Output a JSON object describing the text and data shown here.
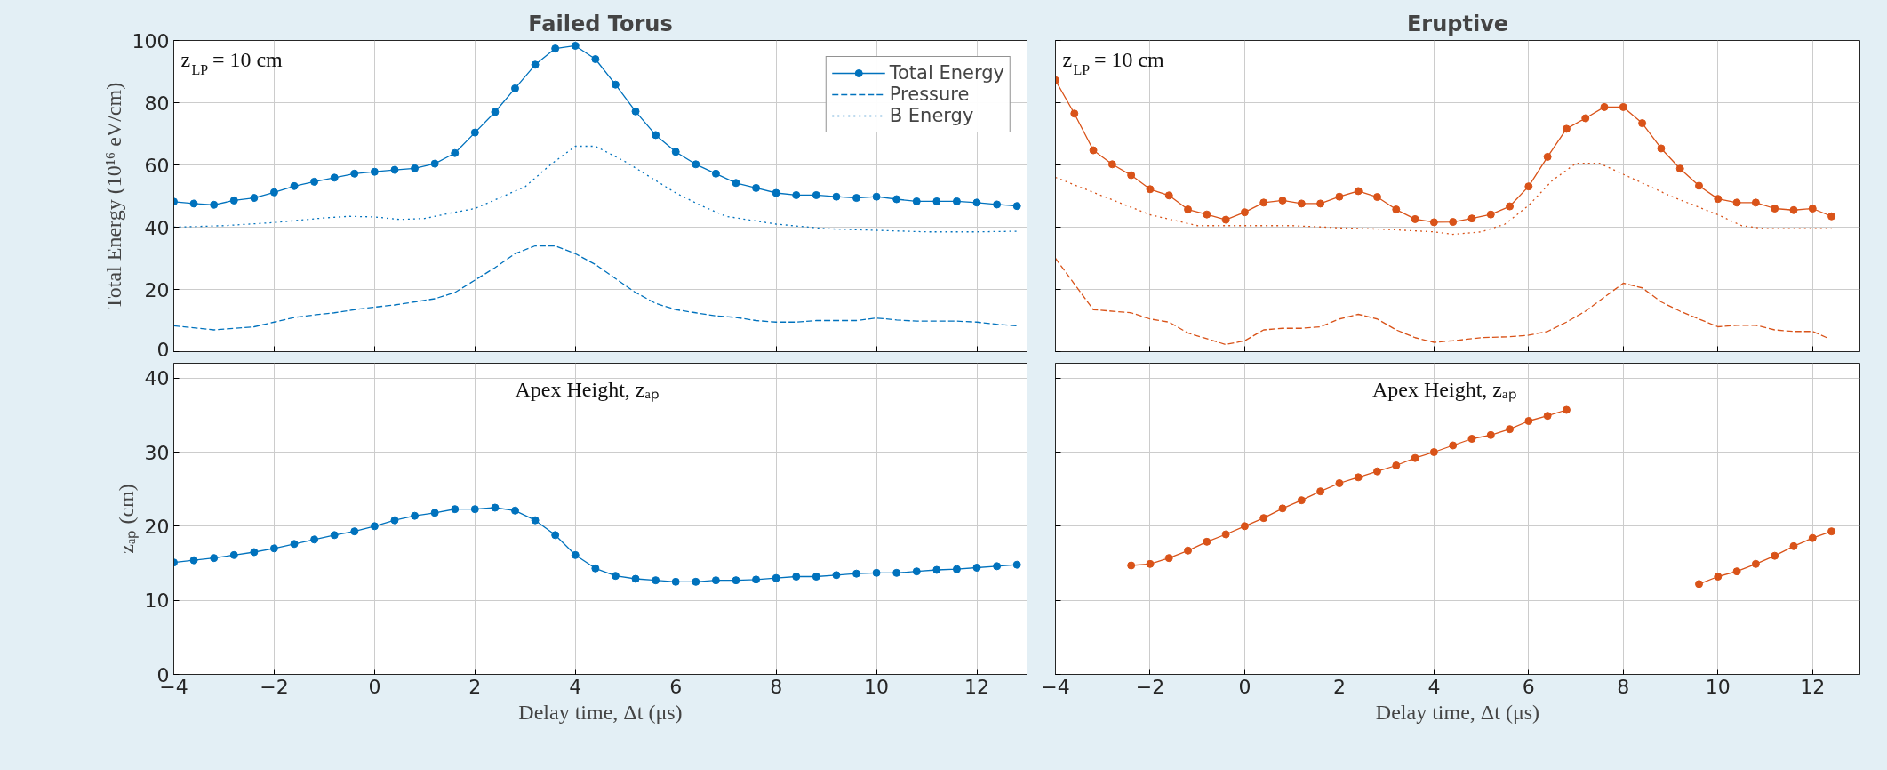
{
  "chart_data": [
    {
      "type": "line",
      "title": "Failed Torus",
      "ylabel": "Total Energy (10¹⁶ eV/cm)",
      "annotations": [
        "z$_{LP}$ = 10 cm"
      ],
      "xlim": [
        -4,
        13
      ],
      "xticks": [
        -4,
        -2,
        0,
        2,
        4,
        6,
        8,
        10,
        12
      ],
      "ylim": [
        0,
        100
      ],
      "yticks": [
        0,
        20,
        40,
        60,
        80,
        100
      ],
      "grid": true,
      "legend": "top right",
      "tick_labels": "y",
      "series": [
        {
          "name": "Total Energy",
          "color": "#0072bd",
          "marker": "circle",
          "line_style": "solid",
          "x": [
            -4,
            -3.6,
            -3.2,
            -2.8,
            -2.4,
            -2,
            -1.6,
            -1.2,
            -0.8,
            -0.4,
            0,
            0.4,
            0.8,
            1.2,
            1.6,
            2,
            2.4,
            2.8,
            3.2,
            3.6,
            4,
            4.4,
            4.8,
            5.2,
            5.6,
            6,
            6.4,
            6.8,
            7.2,
            7.6,
            8,
            8.4,
            8.8,
            9.2,
            9.6,
            10,
            10.4,
            10.8,
            11.2,
            11.6,
            12,
            12.4,
            12.8
          ],
          "values": [
            48.2,
            47.6,
            47.2,
            48.6,
            49.4,
            51.2,
            53.2,
            54.6,
            55.9,
            57.2,
            57.8,
            58.4,
            58.9,
            60.4,
            63.8,
            70.4,
            77,
            84.6,
            92.2,
            97.4,
            98.3,
            94,
            85.8,
            77.2,
            69.6,
            64.2,
            60.2,
            57.2,
            54.2,
            52.6,
            51,
            50.3,
            50.3,
            49.8,
            49.4,
            49.8,
            49,
            48.3,
            48.3,
            48.3,
            47.9,
            47.3,
            46.8
          ]
        },
        {
          "name": "Pressure",
          "color": "#0072bd",
          "marker": "none",
          "line_style": "dashed",
          "x": [
            -4,
            -3.2,
            -2.4,
            -2,
            -1.6,
            -1.2,
            -0.8,
            -0.4,
            0,
            0.4,
            0.8,
            1.2,
            1.6,
            2,
            2.4,
            2.8,
            3.2,
            3.6,
            4,
            4.4,
            4.8,
            5.2,
            5.6,
            6,
            6.4,
            6.8,
            7.2,
            7.6,
            8,
            8.4,
            8.8,
            9.2,
            9.6,
            10,
            10.4,
            10.8,
            11.2,
            11.6,
            12,
            12.4,
            12.8
          ],
          "values": [
            8.3,
            7,
            8,
            9.5,
            11,
            11.8,
            12.5,
            13.5,
            14.3,
            15,
            16,
            17,
            19,
            23,
            27,
            31.5,
            34,
            34,
            31.5,
            28,
            23.5,
            19,
            15.5,
            13.5,
            12.5,
            11.5,
            11,
            10,
            9.5,
            9.5,
            10,
            10,
            10,
            10.8,
            10.2,
            9.8,
            9.8,
            9.8,
            9.5,
            8.8,
            8.3
          ]
        },
        {
          "name": "B Energy",
          "color": "#0072bd",
          "marker": "none",
          "line_style": "dotted",
          "x": [
            -4,
            -3,
            -2,
            -1,
            -0.5,
            0,
            0.5,
            1,
            1.5,
            2,
            2.5,
            3,
            3.5,
            4,
            4.4,
            5,
            6,
            6.5,
            7,
            8,
            9,
            10,
            11,
            12,
            12.8
          ],
          "values": [
            40,
            40.5,
            41.5,
            43,
            43.5,
            43.3,
            42.5,
            42.8,
            44.5,
            46,
            49.5,
            53,
            60,
            66,
            66,
            61,
            51,
            47,
            43.5,
            41,
            39.5,
            39,
            38.5,
            38.5,
            38.7
          ]
        }
      ]
    },
    {
      "type": "line",
      "title": "Eruptive",
      "annotations": [
        "z$_{LP}$ = 10 cm"
      ],
      "xlim": [
        -4,
        13
      ],
      "xticks": [
        -4,
        -2,
        0,
        2,
        4,
        6,
        8,
        10,
        12
      ],
      "ylim": [
        0,
        100
      ],
      "yticks": [
        0,
        20,
        40,
        60,
        80,
        100
      ],
      "grid": true,
      "tick_labels": false,
      "series": [
        {
          "color": "#d95319",
          "marker": "circle",
          "line_style": "solid",
          "x": [
            -4,
            -3.6,
            -3.2,
            -2.8,
            -2.4,
            -2,
            -1.6,
            -1.2,
            -0.8,
            -0.4,
            0,
            0.4,
            0.8,
            1.2,
            1.6,
            2,
            2.4,
            2.8,
            3.2,
            3.6,
            4,
            4.4,
            4.8,
            5.2,
            5.6,
            6,
            6.4,
            6.8,
            7.2,
            7.6,
            8,
            8.4,
            8.8,
            9.2,
            9.6,
            10,
            10.4,
            10.8,
            11.2,
            11.6,
            12,
            12.4
          ],
          "values": [
            87.2,
            76.5,
            64.7,
            60.2,
            56.7,
            52.2,
            50.2,
            45.7,
            44.1,
            42.4,
            44.8,
            47.9,
            48.6,
            47.6,
            47.6,
            49.8,
            51.6,
            49.7,
            45.7,
            42.6,
            41.6,
            41.7,
            42.8,
            44.1,
            46.7,
            53.1,
            62.6,
            71.6,
            75,
            78.6,
            78.6,
            73.4,
            65.3,
            58.8,
            53.3,
            49.1,
            47.9,
            47.9,
            46,
            45.5,
            46,
            43.5
          ]
        },
        {
          "color": "#d95319",
          "marker": "none",
          "line_style": "dashed",
          "x": [
            -4,
            -3.2,
            -2.4,
            -2,
            -1.6,
            -1.2,
            -0.4,
            0,
            0.4,
            0.8,
            1.2,
            1.6,
            2,
            2.4,
            2.8,
            3.2,
            3.6,
            4,
            4.4,
            5,
            5.6,
            6,
            6.4,
            6.8,
            7.2,
            7.6,
            8,
            8.4,
            8.8,
            9.2,
            9.6,
            10,
            10.4,
            10.8,
            11.2,
            11.6,
            12,
            12.3
          ],
          "values": [
            30,
            13.5,
            12.5,
            10.5,
            9.5,
            6,
            2.3,
            3.5,
            7,
            7.5,
            7.5,
            8,
            10.5,
            12,
            10.5,
            7,
            4.5,
            3,
            3.5,
            4.5,
            4.8,
            5.3,
            6.5,
            9.5,
            13,
            17.5,
            22,
            20.5,
            16,
            13,
            10.5,
            8,
            8.5,
            8.5,
            7,
            6.5,
            6.5,
            4.5
          ]
        },
        {
          "color": "#d95319",
          "marker": "none",
          "line_style": "dotted",
          "x": [
            -4,
            -3,
            -2,
            -1,
            0,
            1,
            2,
            3,
            4,
            4.4,
            5,
            5.5,
            6,
            6.5,
            7,
            7.5,
            8,
            9,
            10,
            10.5,
            11,
            12,
            12.4
          ],
          "values": [
            56,
            50,
            44,
            40.5,
            40.5,
            40.5,
            39.8,
            39.3,
            38.5,
            37.7,
            38.5,
            41,
            47,
            55,
            60.5,
            60.5,
            57,
            50,
            44,
            40.5,
            39.5,
            39.5,
            39.5
          ]
        }
      ]
    },
    {
      "type": "line",
      "xlabel": "Delay time, Δt (μs)",
      "ylabel": "zₐₚ (cm)",
      "annotations": [
        "Apex Height, zₐₚ"
      ],
      "xlim": [
        -4,
        13
      ],
      "xticks": [
        -4,
        -2,
        0,
        2,
        4,
        6,
        8,
        10,
        12
      ],
      "ylim": [
        0,
        42
      ],
      "yticks": [
        0,
        10,
        20,
        30,
        40
      ],
      "grid": true,
      "series": [
        {
          "color": "#0072bd",
          "marker": "circle",
          "line_style": "solid",
          "x": [
            -4,
            -3.6,
            -3.2,
            -2.8,
            -2.4,
            -2,
            -1.6,
            -1.2,
            -0.8,
            -0.4,
            0,
            0.4,
            0.8,
            1.2,
            1.6,
            2,
            2.4,
            2.8,
            3.2,
            3.6,
            4,
            4.4,
            4.8,
            5.2,
            5.6,
            6,
            6.4,
            6.8,
            7.2,
            7.6,
            8,
            8.4,
            8.8,
            9.2,
            9.6,
            10,
            10.4,
            10.8,
            11.2,
            11.6,
            12,
            12.4,
            12.8
          ],
          "values": [
            15.1,
            15.4,
            15.7,
            16.1,
            16.5,
            17,
            17.6,
            18.2,
            18.8,
            19.3,
            20,
            20.8,
            21.4,
            21.8,
            22.3,
            22.3,
            22.5,
            22.1,
            20.8,
            18.8,
            16.1,
            14.3,
            13.3,
            12.9,
            12.7,
            12.5,
            12.5,
            12.7,
            12.7,
            12.8,
            13,
            13.2,
            13.2,
            13.4,
            13.6,
            13.7,
            13.7,
            13.9,
            14.1,
            14.2,
            14.4,
            14.6,
            14.8
          ]
        }
      ]
    },
    {
      "type": "line",
      "xlabel": "Delay time, Δt (μs)",
      "annotations": [
        "Apex Height, zₐₚ"
      ],
      "xlim": [
        -4,
        13
      ],
      "xticks": [
        -4,
        -2,
        0,
        2,
        4,
        6,
        8,
        10,
        12
      ],
      "ylim": [
        0,
        42
      ],
      "yticks": [
        0,
        10,
        20,
        30,
        40
      ],
      "grid": true,
      "tick_labels": "x",
      "series": [
        {
          "color": "#d95319",
          "marker": "circle",
          "line_style": "solid",
          "x": [
            -2.4,
            -2,
            -1.6,
            -1.2,
            -0.8,
            -0.4,
            0,
            0.4,
            0.8,
            1.2,
            1.6,
            2,
            2.4,
            2.8,
            3.2,
            3.6,
            4,
            4.4,
            4.8,
            5.2,
            5.6,
            6,
            6.4,
            6.8,
            8.2,
            9.6,
            10,
            10.4,
            10.8,
            11.2,
            11.6,
            12,
            12.4
          ],
          "values": [
            14.7,
            14.9,
            15.7,
            16.7,
            17.9,
            18.9,
            20,
            21.1,
            22.4,
            23.5,
            24.7,
            25.8,
            26.6,
            27.4,
            28.2,
            29.2,
            30,
            30.9,
            31.8,
            32.3,
            33.1,
            34.2,
            34.9,
            35.7,
            null,
            12.2,
            13.2,
            13.9,
            14.9,
            16,
            17.3,
            18.4,
            19.3
          ]
        }
      ]
    }
  ]
}
